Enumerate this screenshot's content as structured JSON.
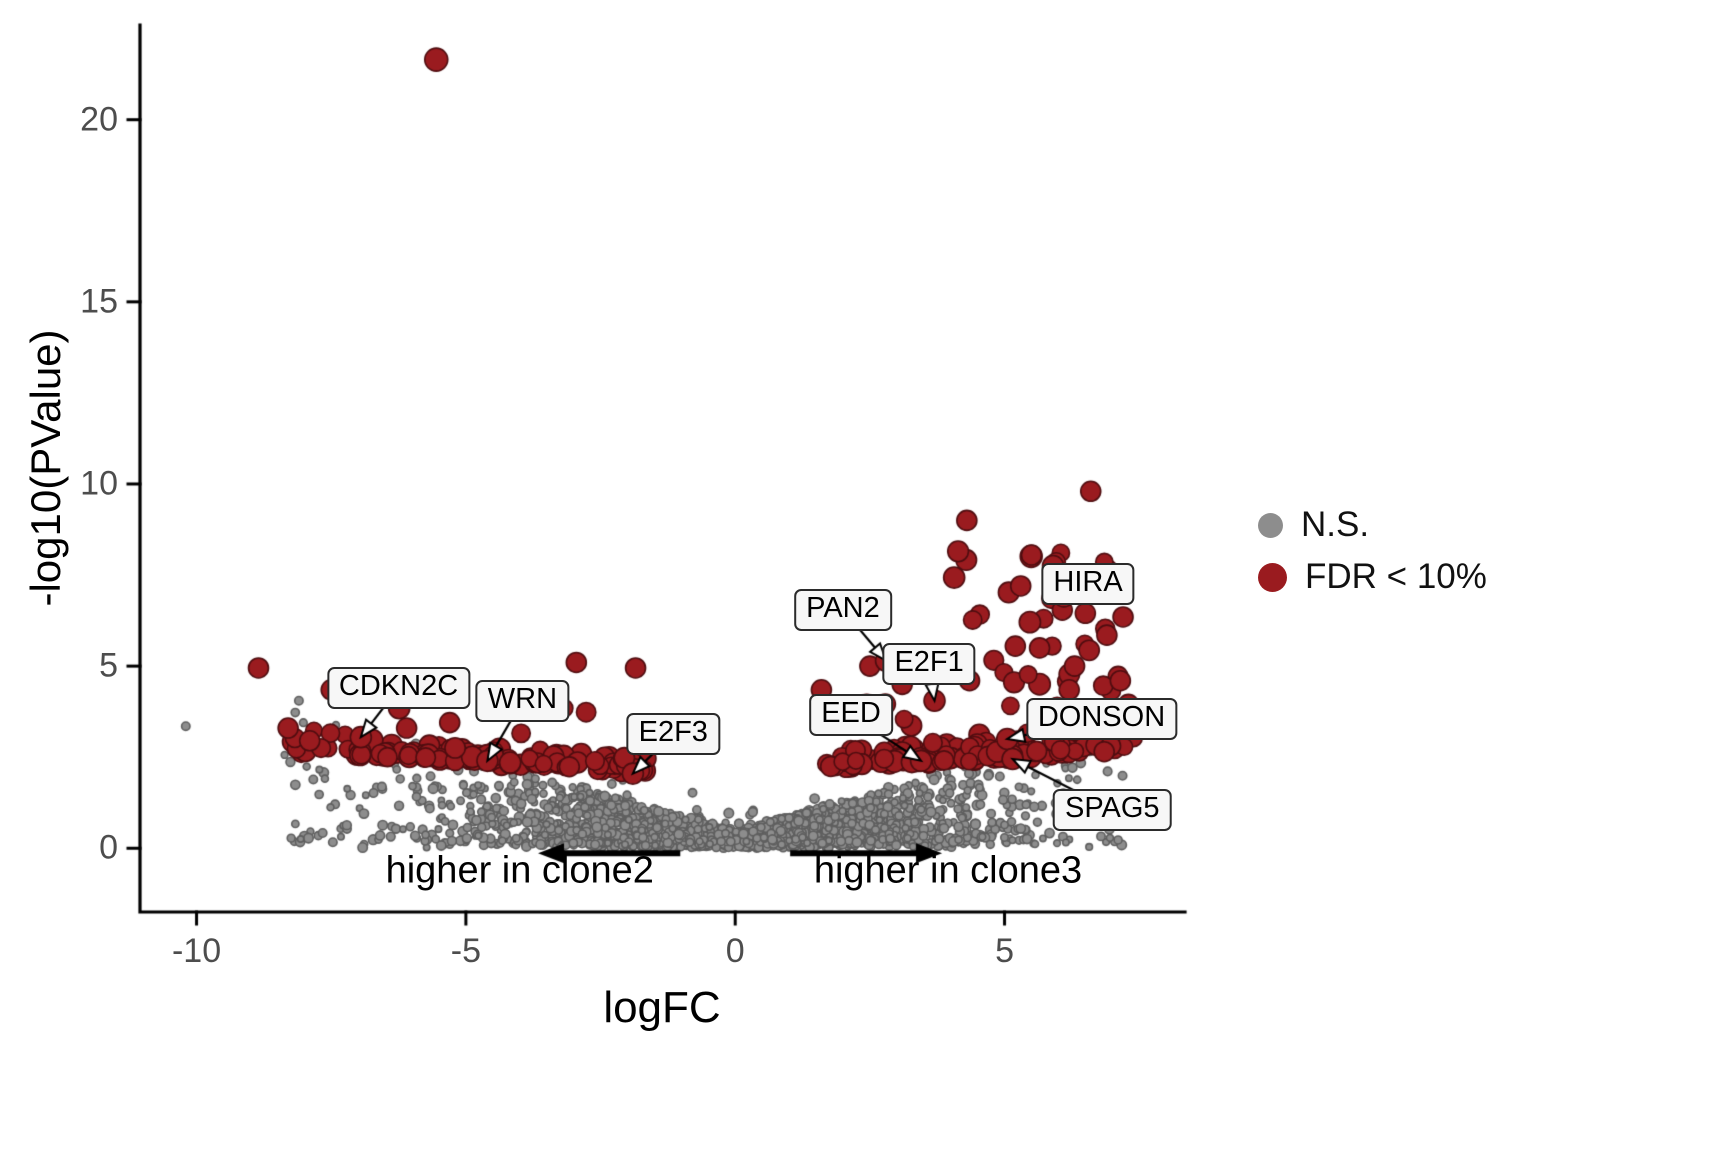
{
  "chart_data": {
    "type": "scatter",
    "title": "",
    "xlabel": "logFC",
    "ylabel": "-log10(PValue)",
    "xlim": [
      -11.05,
      8.35
    ],
    "ylim": [
      -1.75,
      22.6
    ],
    "xticks": [
      -10,
      -5,
      0,
      5
    ],
    "yticks": [
      0,
      5,
      10,
      15,
      20
    ],
    "grid": false,
    "legend_position": "right",
    "legend": [
      {
        "label": "N.S.",
        "color": "#8d8d8d"
      },
      {
        "label": "FDR < 10%",
        "color": "#9a1b1f"
      }
    ],
    "colors": {
      "ns": "#8d8d8d",
      "ns_stroke": "#5f5f5f",
      "sig": "#9a1b1f",
      "sig_stroke": "#4f0d10",
      "axis": "#000000",
      "tick_text": "#4d4d4d"
    },
    "outlier": {
      "x": -5.55,
      "y": 21.65
    },
    "labeled_genes": [
      {
        "name": "CDKN2C",
        "label_x": -6.25,
        "label_y": 4.4,
        "point_x": -6.95,
        "point_y": 3.05,
        "draw_arrow": true
      },
      {
        "name": "WRN",
        "label_x": -3.95,
        "label_y": 4.05,
        "point_x": -4.6,
        "point_y": 2.4,
        "draw_arrow": true
      },
      {
        "name": "E2F3",
        "label_x": -1.15,
        "label_y": 3.15,
        "point_x": -1.9,
        "point_y": 2.05,
        "draw_arrow": true
      },
      {
        "name": "PAN2",
        "label_x": 2.0,
        "label_y": 6.55,
        "point_x": 2.8,
        "point_y": 5.15,
        "draw_arrow": true
      },
      {
        "name": "E2F1",
        "label_x": 3.6,
        "label_y": 5.05,
        "point_x": 3.7,
        "point_y": 4.05,
        "draw_arrow": true
      },
      {
        "name": "EED",
        "label_x": 2.15,
        "label_y": 3.65,
        "point_x": 3.45,
        "point_y": 2.4,
        "draw_arrow": true
      },
      {
        "name": "HIRA",
        "label_x": 6.55,
        "label_y": 7.25,
        "point_x": 5.9,
        "point_y": 7.75,
        "draw_arrow": false
      },
      {
        "name": "DONSON",
        "label_x": 6.8,
        "label_y": 3.55,
        "point_x": 5.05,
        "point_y": 3.0,
        "draw_arrow": true
      },
      {
        "name": "SPAG5",
        "label_x": 7.0,
        "label_y": 1.05,
        "point_x": 5.15,
        "point_y": 2.45,
        "draw_arrow": true
      }
    ],
    "red_extra_points": [
      [
        -8.85,
        4.95
      ],
      [
        -8.3,
        3.3
      ],
      [
        -7.5,
        4.35
      ],
      [
        -7.9,
        2.95
      ],
      [
        -6.1,
        3.3
      ],
      [
        -5.3,
        3.45
      ],
      [
        -2.95,
        5.1
      ],
      [
        -1.85,
        4.95
      ],
      [
        4.3,
        9.0
      ],
      [
        6.6,
        9.8
      ],
      [
        5.9,
        7.75
      ],
      [
        5.5,
        8.05
      ],
      [
        5.3,
        7.2
      ],
      [
        6.1,
        6.9
      ],
      [
        6.5,
        6.45
      ],
      [
        7.2,
        6.35
      ],
      [
        6.9,
        5.85
      ],
      [
        5.2,
        5.55
      ],
      [
        5.65,
        5.5
      ],
      [
        6.3,
        5.0
      ],
      [
        7.15,
        4.6
      ],
      [
        6.6,
        3.3
      ],
      [
        6.85,
        2.65
      ],
      [
        2.5,
        5.0
      ],
      [
        1.6,
        4.35
      ],
      [
        4.35,
        4.6
      ],
      [
        4.0,
        4.95
      ],
      [
        3.1,
        4.5
      ],
      [
        7.3,
        3.95
      ],
      [
        6.2,
        4.35
      ]
    ],
    "gray_extra_points": [
      [
        -10.2,
        3.35
      ],
      [
        -8.1,
        4.05
      ],
      [
        4.75,
        0.95
      ],
      [
        4.55,
        1.2
      ]
    ],
    "clouds": {
      "seed": 42,
      "gray": {
        "n_core": 2000,
        "n_tail": 420,
        "x_min": -8.4,
        "x_max": 7.2,
        "edge_base": 0.35,
        "edge_slope": 0.42
      },
      "red_left": {
        "n": 118,
        "x_start": -1.6,
        "x_span": 6.7,
        "y_base": 1.9,
        "slope": 0.085,
        "spread": 0.5,
        "high_prob": 0.05,
        "y_cap": 5.15
      },
      "red_right": {
        "n": 170,
        "x_start": 1.7,
        "x_span": 5.7,
        "y_base": 1.95,
        "slope": 0.1,
        "spread": 0.6,
        "high_prob": 0.12,
        "y_cap": 6.9
      },
      "red_right_high": {
        "n": 28,
        "x_min": 4.0,
        "x_max": 7.2,
        "y_min": 4.4,
        "y_max": 8.2
      }
    },
    "annotations": [
      {
        "text": "higher in clone2",
        "x": -4.0,
        "y": -0.63,
        "arrow": {
          "x_tail": -1.02,
          "x_head": -3.66,
          "y": -0.14
        }
      },
      {
        "text": "higher in clone3",
        "x": 3.95,
        "y": -0.63,
        "arrow": {
          "x_tail": 1.02,
          "x_head": 3.84,
          "y": -0.14
        }
      }
    ]
  }
}
